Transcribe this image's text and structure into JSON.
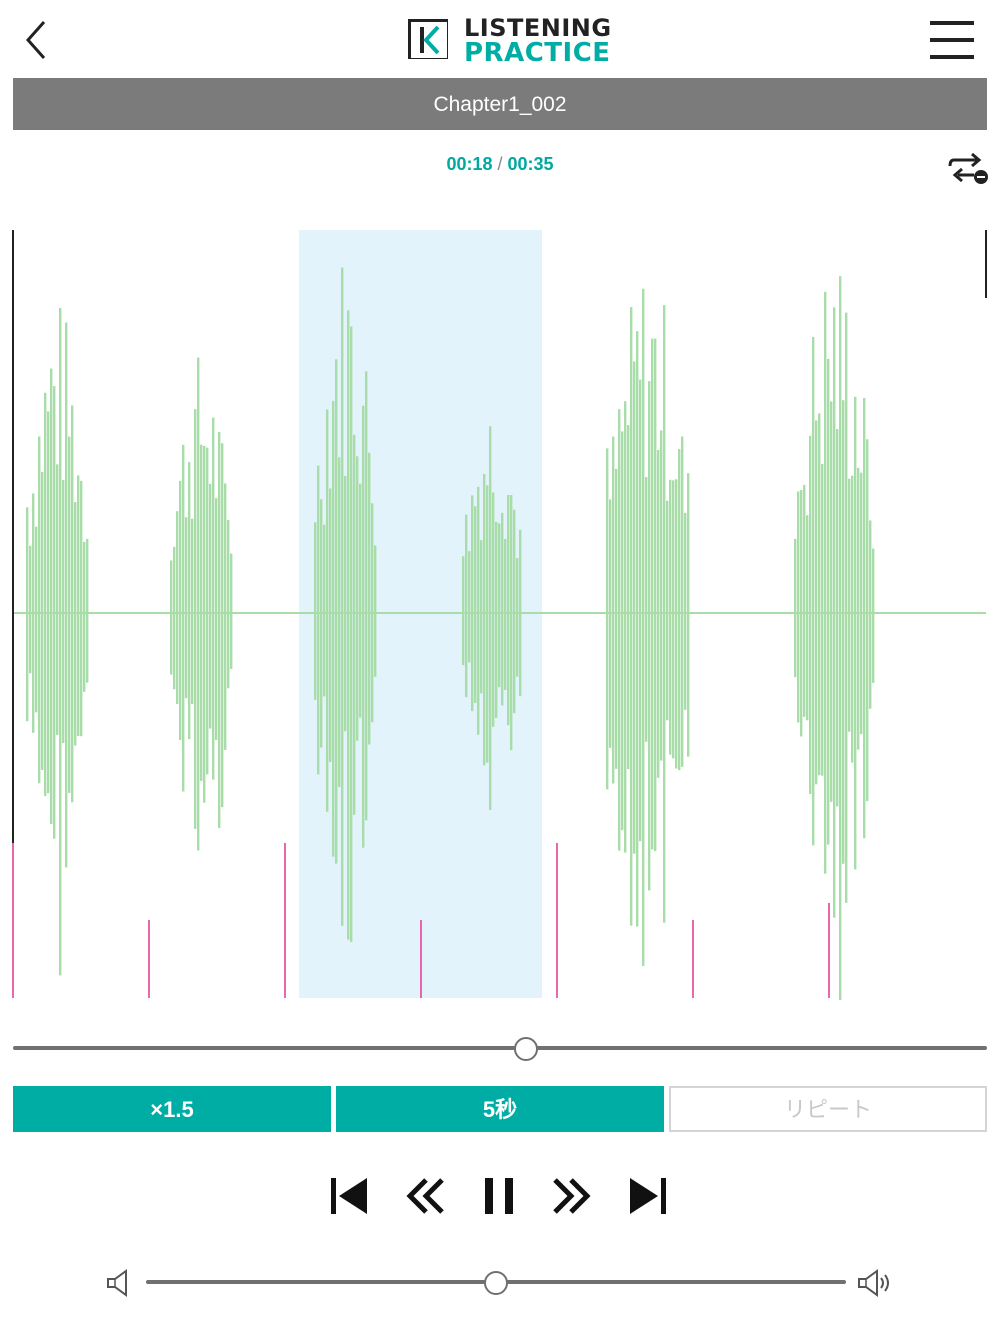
{
  "header": {
    "logo_letter": "K",
    "logo_line1": "LISTENING",
    "logo_line2": "PRACTICE",
    "back_icon": "chevron-left-icon",
    "menu_icon": "hamburger-menu-icon"
  },
  "track": {
    "title": "Chapter1_002",
    "current_time": "00:18",
    "separator": "/",
    "total_time": "00:35",
    "progress": 0.527
  },
  "repeat_icon": "repeat-one-icon",
  "options": {
    "speed_label": "×1.5",
    "skip_label": "5秒",
    "repeat_label": "リピート"
  },
  "controls": {
    "prev_icon": "skip-previous-icon",
    "rewind_icon": "rewind-icon",
    "pause_icon": "pause-icon",
    "forward_icon": "fast-forward-icon",
    "next_icon": "skip-next-icon"
  },
  "volume": {
    "level": 0.5,
    "min_icon": "volume-low-icon",
    "max_icon": "volume-high-icon"
  },
  "colors": {
    "accent": "#00ada5",
    "waveform": "#a8dca8",
    "selection": "#e3f3fb",
    "marker": "#e8409a",
    "title_bar": "#7b7b7b"
  }
}
